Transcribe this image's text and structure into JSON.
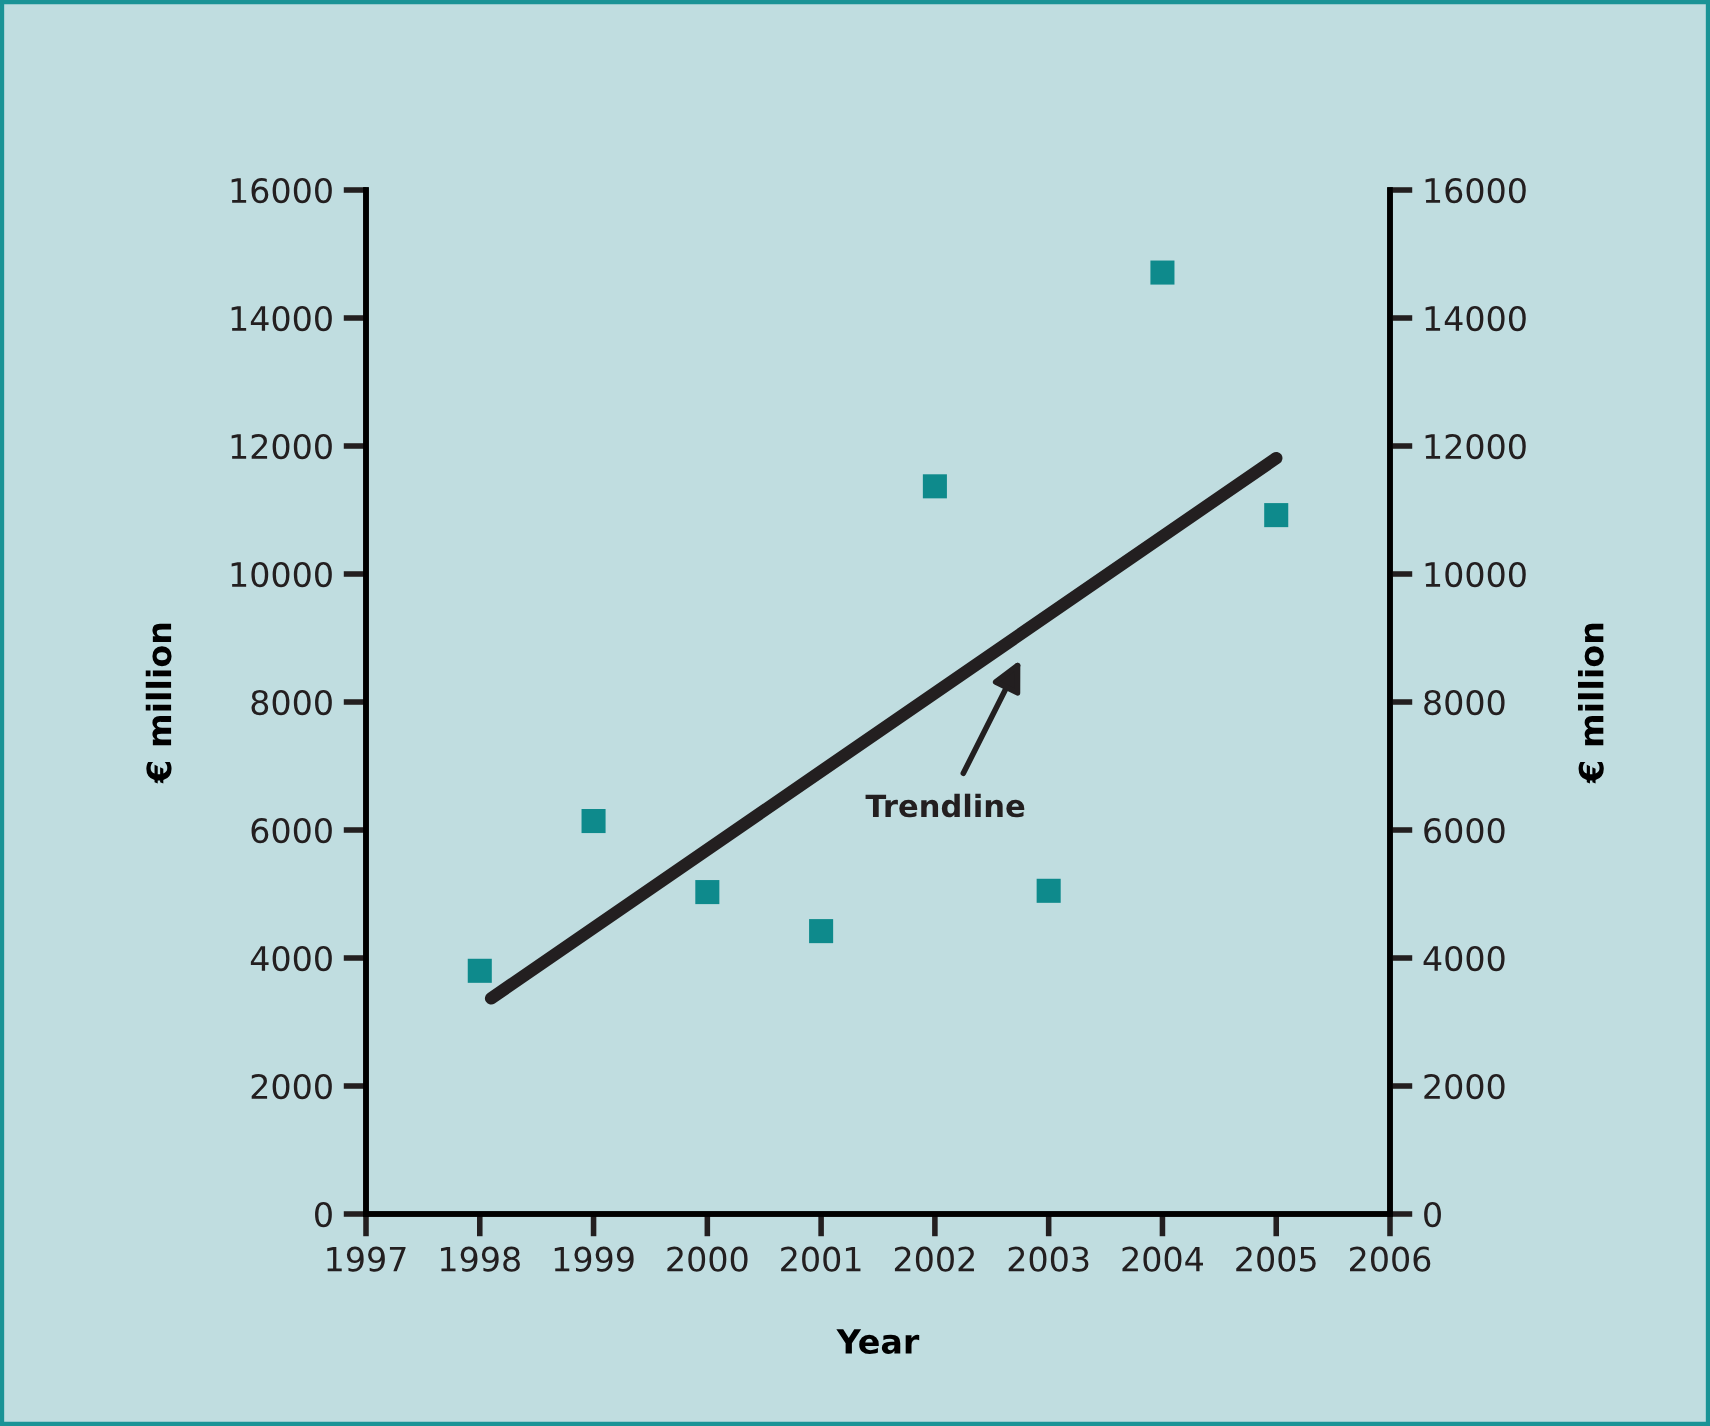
{
  "chart_data": {
    "type": "scatter",
    "xlabel": "Year",
    "ylabel": "€ million",
    "y2label": "€ million",
    "x": [
      1998,
      1999,
      2000,
      2001,
      2002,
      2003,
      2004,
      2005
    ],
    "series": [
      {
        "color": "#0e8a8c",
        "marker": "square",
        "values": [
          3800,
          6140,
          5030,
          4420,
          11370,
          5050,
          14710,
          10920
        ]
      },
      {
        "type": "line",
        "color": "#231f20",
        "line_style": "solid",
        "marker": "none",
        "x": [
          1998.1,
          2005.0
        ],
        "values": [
          3370,
          11810
        ]
      }
    ],
    "annotations": [
      "Trendline"
    ],
    "xlim": [
      1997,
      2006
    ],
    "xticks": [
      1997,
      1998,
      1999,
      2000,
      2001,
      2002,
      2003,
      2004,
      2005,
      2006
    ],
    "ylim": [
      0,
      16000
    ],
    "yticks": [
      0,
      2000,
      4000,
      6000,
      8000,
      10000,
      12000,
      14000,
      16000
    ],
    "y2lim": [
      0,
      16000
    ],
    "y2ticks": [
      0,
      2000,
      4000,
      6000,
      8000,
      10000,
      12000,
      14000,
      16000
    ],
    "grid": false,
    "legend": false
  }
}
